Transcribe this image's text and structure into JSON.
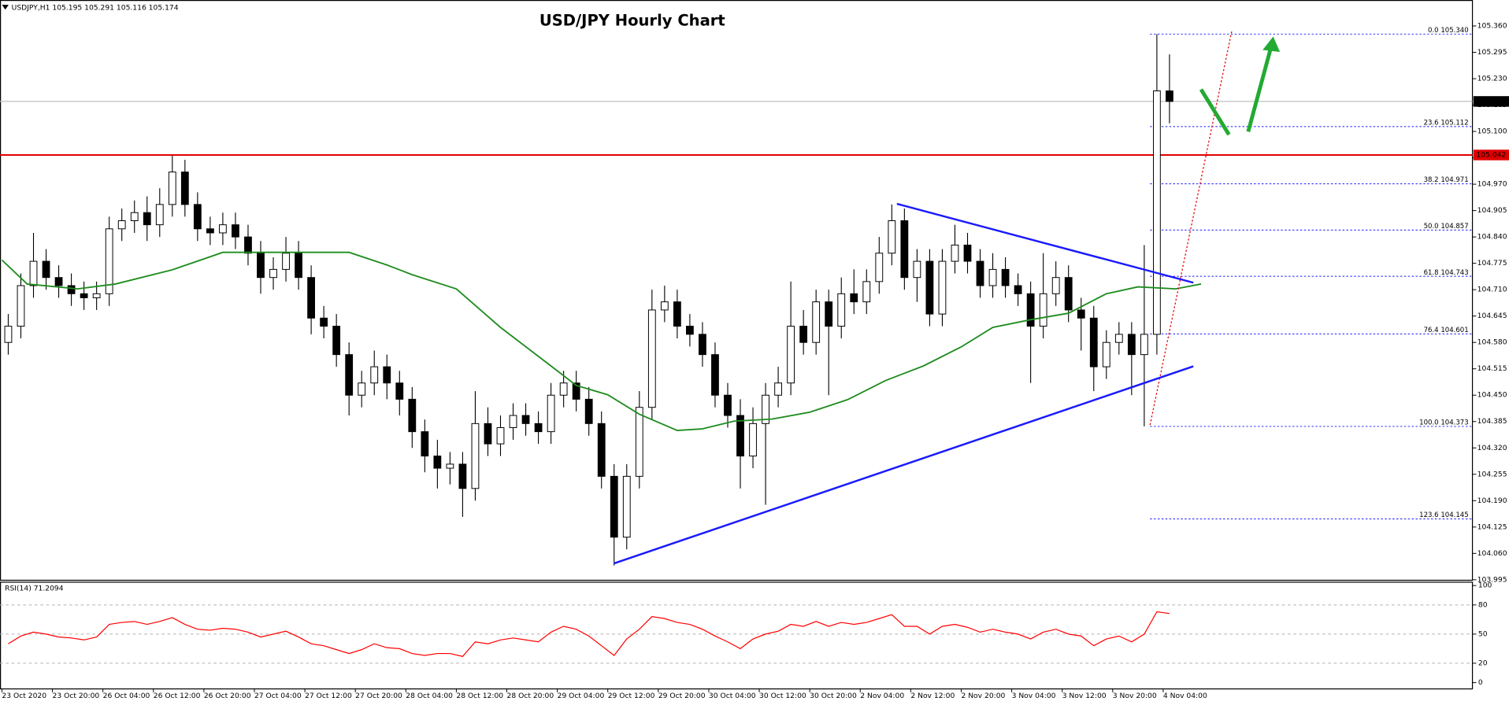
{
  "chart_data": [
    {
      "type": "candlestick",
      "title": "USD/JPY Hourly Chart",
      "header": "USDJPY,H1  105.195 105.291 105.116 105.174",
      "bull_color": "#ffffff",
      "bear_color": "#000000",
      "x": [
        1,
        3,
        5,
        7,
        9,
        11,
        13,
        15,
        17,
        19,
        21,
        23,
        25,
        27,
        29,
        31,
        33,
        35,
        37,
        39,
        41,
        43,
        45,
        47,
        49,
        51,
        53,
        55,
        57,
        59,
        61,
        63,
        65,
        67,
        69,
        71,
        73,
        75,
        77,
        79,
        81,
        83,
        85,
        87,
        89,
        91,
        93,
        95,
        97,
        99,
        101,
        103,
        105,
        107,
        109,
        111,
        113,
        115,
        117,
        119,
        121,
        123,
        125,
        127,
        129,
        131,
        133,
        135,
        137,
        139,
        141,
        143,
        145,
        147,
        149,
        151,
        153,
        155,
        157,
        159,
        161,
        163,
        165,
        167,
        169,
        171,
        173,
        175,
        177,
        179,
        181,
        183,
        185
      ],
      "open": [
        104.58,
        104.62,
        104.72,
        104.78,
        104.74,
        104.72,
        104.7,
        104.69,
        104.7,
        104.86,
        104.88,
        104.9,
        104.87,
        104.92,
        105.0,
        104.92,
        104.86,
        104.85,
        104.87,
        104.84,
        104.8,
        104.74,
        104.76,
        104.8,
        104.74,
        104.64,
        104.62,
        104.55,
        104.45,
        104.48,
        104.52,
        104.48,
        104.44,
        104.36,
        104.3,
        104.27,
        104.28,
        104.22,
        104.38,
        104.33,
        104.37,
        104.4,
        104.38,
        104.36,
        104.45,
        104.48,
        104.44,
        104.38,
        104.25,
        104.1,
        104.25,
        104.42,
        104.66,
        104.68,
        104.62,
        104.6,
        104.55,
        104.45,
        104.4,
        104.3,
        104.38,
        104.45,
        104.48,
        104.62,
        104.58,
        104.68,
        104.62,
        104.7,
        104.68,
        104.73,
        104.8,
        104.88,
        104.74,
        104.78,
        104.65,
        104.78,
        104.82,
        104.78,
        104.72,
        104.76,
        104.72,
        104.7,
        104.62,
        104.7,
        104.74,
        104.66,
        104.64,
        104.52,
        104.58,
        104.6,
        104.55,
        104.6,
        105.2
      ],
      "high": [
        104.65,
        104.75,
        104.85,
        104.81,
        104.77,
        104.75,
        104.73,
        104.73,
        104.89,
        104.91,
        104.93,
        104.94,
        104.96,
        105.04,
        105.03,
        104.95,
        104.89,
        104.9,
        104.9,
        104.87,
        104.83,
        104.79,
        104.84,
        104.83,
        104.77,
        104.67,
        104.65,
        104.58,
        104.51,
        104.56,
        104.55,
        104.51,
        104.47,
        104.39,
        104.34,
        104.31,
        104.31,
        104.46,
        104.42,
        104.4,
        104.43,
        104.43,
        104.41,
        104.48,
        104.51,
        104.51,
        104.47,
        104.41,
        104.28,
        104.28,
        104.46,
        104.71,
        104.72,
        104.71,
        104.65,
        104.63,
        104.58,
        104.48,
        104.44,
        104.42,
        104.48,
        104.52,
        104.73,
        104.66,
        104.71,
        104.71,
        104.74,
        104.76,
        104.76,
        104.84,
        104.92,
        104.91,
        104.81,
        104.81,
        104.81,
        104.87,
        104.85,
        104.81,
        104.8,
        104.79,
        104.75,
        104.73,
        104.8,
        104.78,
        104.77,
        104.69,
        104.67,
        104.61,
        104.63,
        104.63,
        104.82,
        105.34,
        105.29
      ],
      "low": [
        104.55,
        104.59,
        104.69,
        104.71,
        104.69,
        104.67,
        104.66,
        104.66,
        104.67,
        104.83,
        104.85,
        104.83,
        104.84,
        104.89,
        104.89,
        104.83,
        104.82,
        104.82,
        104.81,
        104.77,
        104.7,
        104.71,
        104.73,
        104.71,
        104.6,
        104.59,
        104.52,
        104.4,
        104.42,
        104.45,
        104.44,
        104.4,
        104.32,
        104.26,
        104.22,
        104.23,
        104.15,
        104.19,
        104.3,
        104.3,
        104.34,
        104.35,
        104.33,
        104.33,
        104.42,
        104.41,
        104.35,
        104.22,
        104.03,
        104.07,
        104.22,
        104.39,
        104.63,
        104.59,
        104.57,
        104.52,
        104.42,
        104.37,
        104.22,
        104.27,
        104.18,
        104.42,
        104.45,
        104.55,
        104.55,
        104.45,
        104.59,
        104.65,
        104.65,
        104.7,
        104.77,
        104.71,
        104.68,
        104.62,
        104.62,
        104.75,
        104.75,
        104.69,
        104.69,
        104.69,
        104.67,
        104.48,
        104.59,
        104.67,
        104.63,
        104.56,
        104.46,
        104.49,
        104.55,
        104.45,
        104.373,
        104.55,
        105.12
      ],
      "close": [
        104.62,
        104.72,
        104.78,
        104.74,
        104.72,
        104.7,
        104.69,
        104.7,
        104.86,
        104.88,
        104.9,
        104.87,
        104.92,
        105.0,
        104.92,
        104.86,
        104.85,
        104.87,
        104.84,
        104.8,
        104.74,
        104.76,
        104.8,
        104.74,
        104.64,
        104.62,
        104.55,
        104.45,
        104.48,
        104.52,
        104.48,
        104.44,
        104.36,
        104.3,
        104.27,
        104.28,
        104.22,
        104.38,
        104.33,
        104.37,
        104.4,
        104.38,
        104.36,
        104.45,
        104.48,
        104.44,
        104.38,
        104.25,
        104.1,
        104.25,
        104.42,
        104.66,
        104.68,
        104.62,
        104.6,
        104.55,
        104.45,
        104.4,
        104.3,
        104.38,
        104.45,
        104.48,
        104.62,
        104.58,
        104.68,
        104.62,
        104.7,
        104.68,
        104.73,
        104.8,
        104.88,
        104.74,
        104.78,
        104.65,
        104.78,
        104.82,
        104.78,
        104.72,
        104.76,
        104.72,
        104.7,
        104.62,
        104.7,
        104.74,
        104.66,
        104.64,
        104.52,
        104.58,
        104.6,
        104.55,
        104.6,
        105.2,
        105.174
      ],
      "ma": {
        "color": "#1e8c1e",
        "x": [
          0,
          4,
          12,
          18,
          27,
          35,
          41,
          47,
          55,
          61,
          65,
          72,
          79,
          87,
          91,
          96,
          101,
          107,
          111,
          116,
          122,
          128,
          134,
          140,
          146,
          152,
          157,
          163,
          169,
          175,
          180,
          186,
          190
        ],
        "values": [
          104.783,
          104.724,
          104.712,
          104.724,
          104.759,
          104.802,
          104.802,
          104.802,
          104.802,
          104.771,
          104.747,
          104.712,
          104.617,
          104.522,
          104.474,
          104.451,
          104.403,
          104.363,
          104.367,
          104.386,
          104.391,
          104.408,
          104.439,
          104.486,
          104.522,
          104.569,
          104.617,
          104.636,
          104.652,
          104.7,
          104.717,
          104.712,
          104.724
        ]
      },
      "current_price": 105.174,
      "current_color": "#000000",
      "resistance": 105.042,
      "resistance_color": "#e00000",
      "fib_color": "#1a1aff",
      "fib_levels": [
        {
          "value": 105.34,
          "label": "0.0 105.340"
        },
        {
          "value": 105.112,
          "label": "23.6 105.112"
        },
        {
          "value": 104.971,
          "label": "38.2 104.971"
        },
        {
          "value": 104.857,
          "label": "50.0 104.857"
        },
        {
          "value": 104.743,
          "label": "61.8 104.743"
        },
        {
          "value": 104.601,
          "label": "76.4 104.601"
        },
        {
          "value": 104.373,
          "label": "100.0 104.373"
        },
        {
          "value": 104.145,
          "label": "123.6 104.145"
        }
      ],
      "xlim": [
        0,
        233
      ],
      "xticks": [
        {
          "value": 0,
          "label": "23 Oct 2020"
        },
        {
          "value": 8,
          "label": "23 Oct 20:00"
        },
        {
          "value": 16,
          "label": "26 Oct 04:00"
        },
        {
          "value": 24,
          "label": "26 Oct 12:00"
        },
        {
          "value": 32,
          "label": "26 Oct 20:00"
        },
        {
          "value": 40,
          "label": "27 Oct 04:00"
        },
        {
          "value": 48,
          "label": "27 Oct 12:00"
        },
        {
          "value": 56,
          "label": "27 Oct 20:00"
        },
        {
          "value": 64,
          "label": "28 Oct 04:00"
        },
        {
          "value": 72,
          "label": "28 Oct 12:00"
        },
        {
          "value": 80,
          "label": "28 Oct 20:00"
        },
        {
          "value": 88,
          "label": "29 Oct 04:00"
        },
        {
          "value": 96,
          "label": "29 Oct 12:00"
        },
        {
          "value": 104,
          "label": "29 Oct 20:00"
        },
        {
          "value": 112,
          "label": "30 Oct 04:00"
        },
        {
          "value": 120,
          "label": "30 Oct 12:00"
        },
        {
          "value": 128,
          "label": "30 Oct 20:00"
        },
        {
          "value": 136,
          "label": "2 Nov 04:00"
        },
        {
          "value": 144,
          "label": "2 Nov 12:00"
        },
        {
          "value": 152,
          "label": "2 Nov 20:00"
        },
        {
          "value": 160,
          "label": "3 Nov 04:00"
        },
        {
          "value": 168,
          "label": "3 Nov 12:00"
        },
        {
          "value": 176,
          "label": "3 Nov 20:00"
        },
        {
          "value": 184,
          "label": "4 Nov 04:00"
        }
      ],
      "ylim": [
        103.995,
        105.424
      ],
      "yticks": [
        {
          "value": 105.36,
          "label": "105.360"
        },
        {
          "value": 105.295,
          "label": "105.295"
        },
        {
          "value": 105.23,
          "label": "105.230"
        },
        {
          "value": 105.165,
          "label": "105.165"
        },
        {
          "value": 105.1,
          "label": "105.100"
        },
        {
          "value": 105.035,
          "label": "105.035"
        },
        {
          "value": 104.97,
          "label": "104.970"
        },
        {
          "value": 104.905,
          "label": "104.905"
        },
        {
          "value": 104.84,
          "label": "104.840"
        },
        {
          "value": 104.775,
          "label": "104.775"
        },
        {
          "value": 104.71,
          "label": "104.710"
        },
        {
          "value": 104.645,
          "label": "104.645"
        },
        {
          "value": 104.58,
          "label": "104.580"
        },
        {
          "value": 104.515,
          "label": "104.515"
        },
        {
          "value": 104.45,
          "label": "104.450"
        },
        {
          "value": 104.385,
          "label": "104.385"
        },
        {
          "value": 104.32,
          "label": "104.320"
        },
        {
          "value": 104.255,
          "label": "104.255"
        },
        {
          "value": 104.19,
          "label": "104.190"
        },
        {
          "value": 104.125,
          "label": "104.125"
        },
        {
          "value": 104.06,
          "label": "104.060"
        },
        {
          "value": 103.995,
          "label": "103.995"
        }
      ]
    },
    {
      "type": "line",
      "title": "RSI(14) 71.2094",
      "color": "#ff0000",
      "x": [
        1,
        3,
        5,
        7,
        9,
        11,
        13,
        15,
        17,
        19,
        21,
        23,
        25,
        27,
        29,
        31,
        33,
        35,
        37,
        39,
        41,
        43,
        45,
        47,
        49,
        51,
        53,
        55,
        57,
        59,
        61,
        63,
        65,
        67,
        69,
        71,
        73,
        75,
        77,
        79,
        81,
        83,
        85,
        87,
        89,
        91,
        93,
        95,
        97,
        99,
        101,
        103,
        105,
        107,
        109,
        111,
        113,
        115,
        117,
        119,
        121,
        123,
        125,
        127,
        129,
        131,
        133,
        135,
        137,
        139,
        141,
        143,
        145,
        147,
        149,
        151,
        153,
        155,
        157,
        159,
        161,
        163,
        165,
        167,
        169,
        171,
        173,
        175,
        177,
        179,
        181,
        183,
        185
      ],
      "values": [
        40,
        48,
        52,
        50,
        47,
        46,
        44,
        47,
        60,
        62,
        63,
        60,
        63,
        67,
        60,
        55,
        54,
        56,
        55,
        52,
        47,
        50,
        53,
        47,
        40,
        38,
        34,
        30,
        34,
        40,
        36,
        35,
        30,
        28,
        30,
        30,
        27,
        42,
        40,
        44,
        46,
        44,
        42,
        52,
        58,
        55,
        48,
        38,
        28,
        45,
        55,
        68,
        66,
        62,
        60,
        55,
        48,
        42,
        35,
        45,
        50,
        53,
        60,
        58,
        63,
        58,
        62,
        60,
        62,
        66,
        70,
        58,
        58,
        50,
        58,
        60,
        57,
        52,
        55,
        52,
        50,
        45,
        52,
        55,
        50,
        48,
        38,
        45,
        48,
        42,
        50,
        73,
        71.2094
      ],
      "xlim": [
        0,
        233
      ],
      "ylim": [
        0,
        100
      ],
      "yticks": [
        0,
        20,
        50,
        80,
        100
      ],
      "grid": true
    }
  ]
}
